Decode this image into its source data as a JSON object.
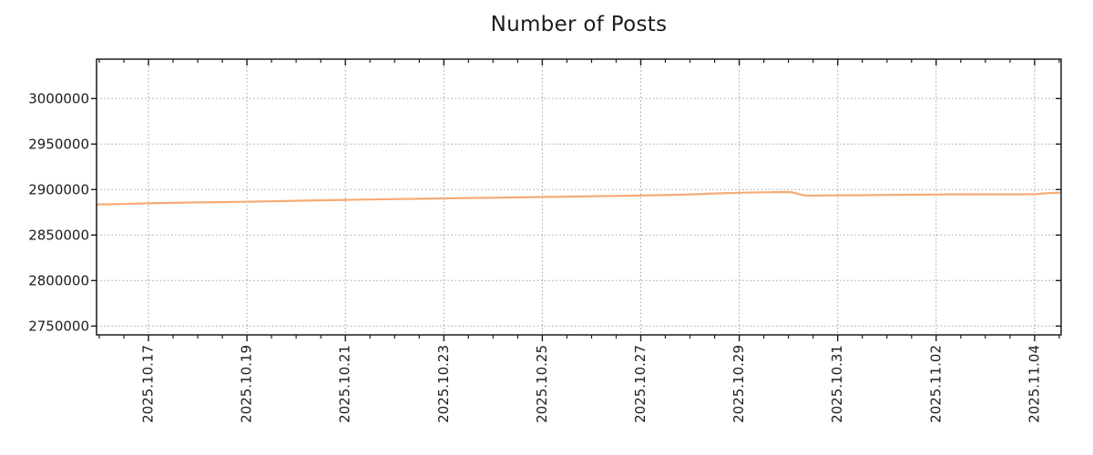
{
  "title": "Number of Posts",
  "colors": {
    "background": "#ffffff",
    "line": "#f6ab74",
    "grid": "#a0a0a0",
    "axis": "#1c1c1c",
    "text": "#1c1c1c"
  },
  "chart_data": {
    "type": "line",
    "title": "Number of Posts",
    "xlabel": "",
    "ylabel": "",
    "legend": "none",
    "grid": {
      "style": "dotted",
      "color": "#a0a0a0"
    },
    "x_axis": {
      "tick_labels": [
        "2025.10.17",
        "2025.10.19",
        "2025.10.21",
        "2025.10.23",
        "2025.10.25",
        "2025.10.27",
        "2025.10.29",
        "2025.10.31",
        "2025.11.02",
        "2025.11.04"
      ],
      "major_tick_offsets_days": [
        0,
        2,
        4,
        6,
        8,
        10,
        12,
        14,
        16,
        18
      ],
      "minor_tick_step_days": 0.5,
      "epoch_label": "2025.10.17",
      "range_days": [
        -1.06,
        18.56
      ],
      "label_rotation_deg": -90
    },
    "y_axis": {
      "tick_labels": [
        "2750000",
        "2800000",
        "2850000",
        "2900000",
        "2950000",
        "3000000"
      ],
      "tick_values": [
        2750000,
        2800000,
        2850000,
        2900000,
        2950000,
        3000000
      ],
      "range": [
        2740000,
        3043000
      ]
    },
    "series": [
      {
        "name": "Number of Posts",
        "color": "#f6ab74",
        "points_days_value": [
          [
            -1.06,
            2883600
          ],
          [
            -0.5,
            2884100
          ],
          [
            0,
            2884900
          ],
          [
            0.5,
            2885400
          ],
          [
            1,
            2885900
          ],
          [
            1.5,
            2886200
          ],
          [
            2,
            2886600
          ],
          [
            2.5,
            2887100
          ],
          [
            3,
            2887700
          ],
          [
            3.5,
            2888200
          ],
          [
            4,
            2888700
          ],
          [
            4.5,
            2889100
          ],
          [
            5,
            2889500
          ],
          [
            5.5,
            2889900
          ],
          [
            6,
            2890300
          ],
          [
            6.5,
            2890700
          ],
          [
            7,
            2891000
          ],
          [
            7.5,
            2891400
          ],
          [
            8,
            2891800
          ],
          [
            8.5,
            2892200
          ],
          [
            9,
            2892600
          ],
          [
            9.5,
            2893000
          ],
          [
            10,
            2893400
          ],
          [
            10.5,
            2893900
          ],
          [
            11,
            2894600
          ],
          [
            11.5,
            2895700
          ],
          [
            12,
            2896500
          ],
          [
            12.5,
            2897000
          ],
          [
            13,
            2897300
          ],
          [
            13.1,
            2896700
          ],
          [
            13.2,
            2895100
          ],
          [
            13.35,
            2893300
          ],
          [
            14,
            2893600
          ],
          [
            14.5,
            2893800
          ],
          [
            15,
            2894100
          ],
          [
            15.5,
            2894300
          ],
          [
            16,
            2894500
          ],
          [
            16.3,
            2894800
          ],
          [
            17,
            2894800
          ],
          [
            17.5,
            2894700
          ],
          [
            18,
            2894900
          ],
          [
            18.3,
            2896200
          ],
          [
            18.54,
            2896600
          ]
        ]
      }
    ]
  }
}
